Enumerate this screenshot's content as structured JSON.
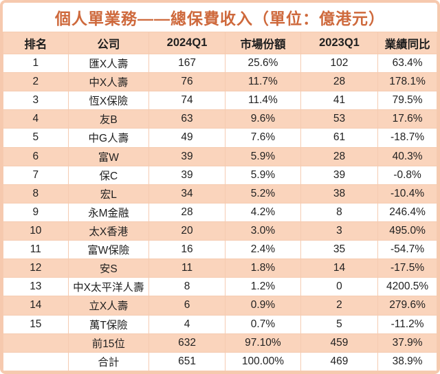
{
  "chart_data": {
    "type": "table",
    "title": "個人單業務——總保費收入（單位：億港元）",
    "unit": "億港元",
    "columns": [
      "排名",
      "公司",
      "2024Q1",
      "市場份額",
      "2023Q1",
      "業績同比"
    ],
    "rows": [
      [
        "1",
        "匯X人壽",
        "167",
        "25.6%",
        "102",
        "63.4%"
      ],
      [
        "2",
        "中X人壽",
        "76",
        "11.7%",
        "28",
        "178.1%"
      ],
      [
        "3",
        "恆X保險",
        "74",
        "11.4%",
        "41",
        "79.5%"
      ],
      [
        "4",
        "友B",
        "63",
        "9.6%",
        "53",
        "17.6%"
      ],
      [
        "5",
        "中G人壽",
        "49",
        "7.6%",
        "61",
        "-18.7%"
      ],
      [
        "6",
        "富W",
        "39",
        "5.9%",
        "28",
        "40.3%"
      ],
      [
        "7",
        "保C",
        "39",
        "5.9%",
        "39",
        "-0.8%"
      ],
      [
        "8",
        "宏L",
        "34",
        "5.2%",
        "38",
        "-10.4%"
      ],
      [
        "9",
        "永M金融",
        "28",
        "4.2%",
        "8",
        "246.4%"
      ],
      [
        "10",
        "太X香港",
        "20",
        "3.0%",
        "3",
        "495.0%"
      ],
      [
        "11",
        "富W保險",
        "16",
        "2.4%",
        "35",
        "-54.7%"
      ],
      [
        "12",
        "安S",
        "11",
        "1.8%",
        "14",
        "-17.5%"
      ],
      [
        "13",
        "中X太平洋人壽",
        "8",
        "1.2%",
        "0",
        "4200.5%"
      ],
      [
        "14",
        "立X人壽",
        "6",
        "0.9%",
        "2",
        "279.6%"
      ],
      [
        "15",
        "萬T保險",
        "4",
        "0.7%",
        "5",
        "-11.2%"
      ],
      [
        "",
        "前15位",
        "632",
        "97.10%",
        "459",
        "37.9%"
      ],
      [
        "",
        "合計",
        "651",
        "100.00%",
        "469",
        "38.9%"
      ]
    ],
    "summary_row_labels": [
      "前15位",
      "合計"
    ]
  },
  "colors": {
    "accent_title": "#ce693c",
    "row_band": "#fad4bc",
    "grid_line": "#f5cbb1",
    "frame": "#f6c9ae",
    "text": "#1f1f1f"
  }
}
